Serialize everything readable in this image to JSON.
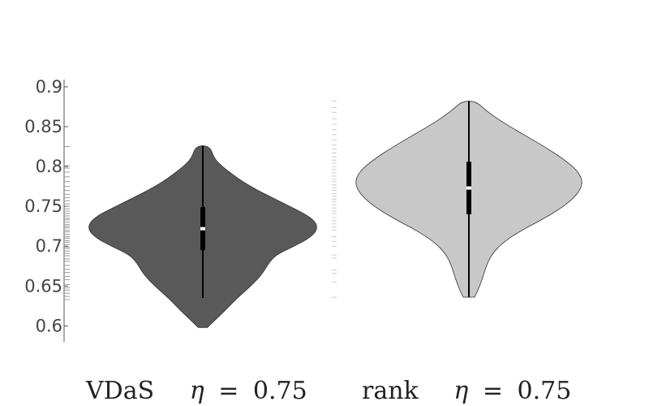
{
  "chart_data": {
    "type": "violin",
    "title": "",
    "xlabel": "",
    "ylabel": "",
    "ylim": [
      0.58,
      0.905
    ],
    "yticks": [
      0.6,
      0.65,
      0.7,
      0.75,
      0.8,
      0.85,
      0.9
    ],
    "ytick_labels": [
      "0.6",
      "0.65",
      "0.7",
      "0.75",
      "0.8",
      "0.85",
      "0.9"
    ],
    "grid": false,
    "groups": [
      {
        "method": "VDaS",
        "eta_symbol": "η",
        "eta_value": "0.75",
        "fill_color": "#595959",
        "min": 0.598,
        "max": 0.826,
        "median": 0.722,
        "q1": 0.695,
        "q3": 0.749,
        "whisker_low": 0.635,
        "whisker_high": 0.826,
        "density_profile": [
          [
            0.598,
            0.04
          ],
          [
            0.605,
            0.09
          ],
          [
            0.62,
            0.2
          ],
          [
            0.635,
            0.3
          ],
          [
            0.65,
            0.42
          ],
          [
            0.665,
            0.52
          ],
          [
            0.68,
            0.58
          ],
          [
            0.69,
            0.65
          ],
          [
            0.7,
            0.8
          ],
          [
            0.71,
            0.93
          ],
          [
            0.72,
            1.0
          ],
          [
            0.73,
            0.99
          ],
          [
            0.74,
            0.9
          ],
          [
            0.75,
            0.76
          ],
          [
            0.76,
            0.62
          ],
          [
            0.77,
            0.48
          ],
          [
            0.78,
            0.36
          ],
          [
            0.79,
            0.26
          ],
          [
            0.8,
            0.17
          ],
          [
            0.81,
            0.1
          ],
          [
            0.826,
            0.06
          ]
        ],
        "rug_values": [
          0.633,
          0.637,
          0.641,
          0.645,
          0.648,
          0.652,
          0.658,
          0.662,
          0.667,
          0.671,
          0.676,
          0.681,
          0.684,
          0.688,
          0.691,
          0.694,
          0.697,
          0.699,
          0.702,
          0.705,
          0.707,
          0.71,
          0.712,
          0.715,
          0.718,
          0.72,
          0.723,
          0.725,
          0.727,
          0.73,
          0.733,
          0.735,
          0.738,
          0.741,
          0.744,
          0.747,
          0.75,
          0.753,
          0.757,
          0.761,
          0.765,
          0.77,
          0.775,
          0.781,
          0.787,
          0.793,
          0.798,
          0.801,
          0.825
        ]
      },
      {
        "method": "rank",
        "eta_symbol": "η",
        "eta_value": "0.75",
        "fill_color": "#c8c8c8",
        "min": 0.636,
        "max": 0.882,
        "median": 0.773,
        "q1": 0.74,
        "q3": 0.806,
        "whisker_low": 0.636,
        "whisker_high": 0.882,
        "density_profile": [
          [
            0.636,
            0.05
          ],
          [
            0.645,
            0.08
          ],
          [
            0.66,
            0.12
          ],
          [
            0.675,
            0.15
          ],
          [
            0.69,
            0.2
          ],
          [
            0.705,
            0.3
          ],
          [
            0.72,
            0.46
          ],
          [
            0.735,
            0.66
          ],
          [
            0.75,
            0.83
          ],
          [
            0.765,
            0.95
          ],
          [
            0.78,
            1.0
          ],
          [
            0.795,
            0.95
          ],
          [
            0.81,
            0.82
          ],
          [
            0.825,
            0.66
          ],
          [
            0.84,
            0.48
          ],
          [
            0.855,
            0.3
          ],
          [
            0.87,
            0.15
          ],
          [
            0.882,
            0.06
          ]
        ],
        "rug_values": [
          0.636,
          0.655,
          0.666,
          0.67,
          0.685,
          0.689,
          0.7,
          0.706,
          0.712,
          0.72,
          0.724,
          0.728,
          0.732,
          0.736,
          0.741,
          0.744,
          0.748,
          0.752,
          0.756,
          0.759,
          0.763,
          0.766,
          0.77,
          0.773,
          0.777,
          0.781,
          0.784,
          0.788,
          0.792,
          0.796,
          0.8,
          0.804,
          0.808,
          0.812,
          0.817,
          0.822,
          0.827,
          0.833,
          0.84,
          0.846,
          0.853,
          0.86,
          0.868,
          0.874,
          0.882
        ]
      }
    ]
  }
}
